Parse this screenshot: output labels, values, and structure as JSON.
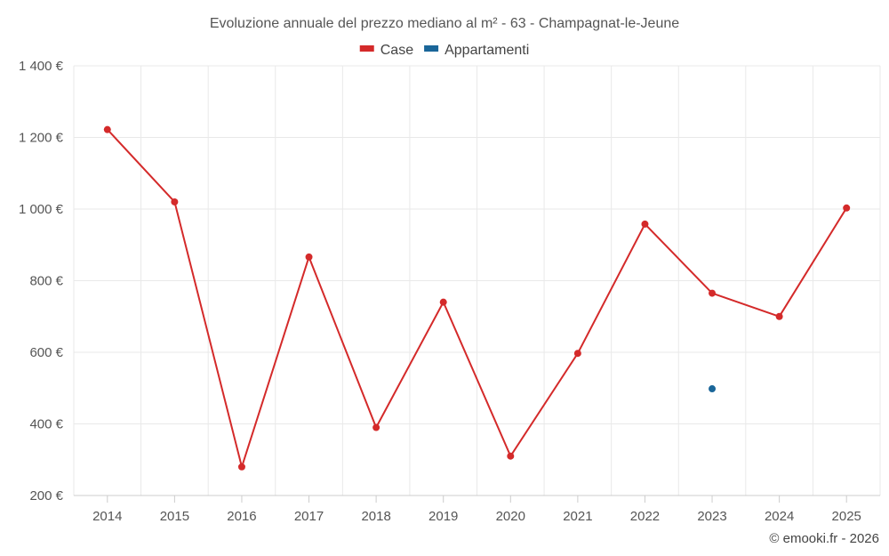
{
  "chart_data": {
    "type": "line",
    "title": "Evoluzione annuale del prezzo mediano al m² - 63 - Champagnat-le-Jeune",
    "categories": [
      "2014",
      "2015",
      "2016",
      "2017",
      "2018",
      "2019",
      "2020",
      "2021",
      "2022",
      "2023",
      "2024",
      "2025"
    ],
    "series": [
      {
        "name": "Case",
        "color": "#d42a2a",
        "values": [
          1222,
          1020,
          280,
          866,
          390,
          740,
          310,
          597,
          958,
          765,
          700,
          1003
        ]
      },
      {
        "name": "Appartamenti",
        "color": "#1a6699",
        "values": [
          null,
          null,
          null,
          null,
          null,
          null,
          null,
          null,
          null,
          498,
          null,
          null
        ]
      }
    ],
    "ylim": [
      200,
      1400
    ],
    "yticks": [
      200,
      400,
      600,
      800,
      1000,
      1200,
      1400
    ],
    "ytick_labels": [
      "200 €",
      "400 €",
      "600 €",
      "800 €",
      "1 000 €",
      "1 200 €",
      "1 400 €"
    ],
    "xlabel": "",
    "ylabel": "",
    "legend_position": "top-center",
    "grid": true
  },
  "credit": "© emooki.fr - 2026"
}
